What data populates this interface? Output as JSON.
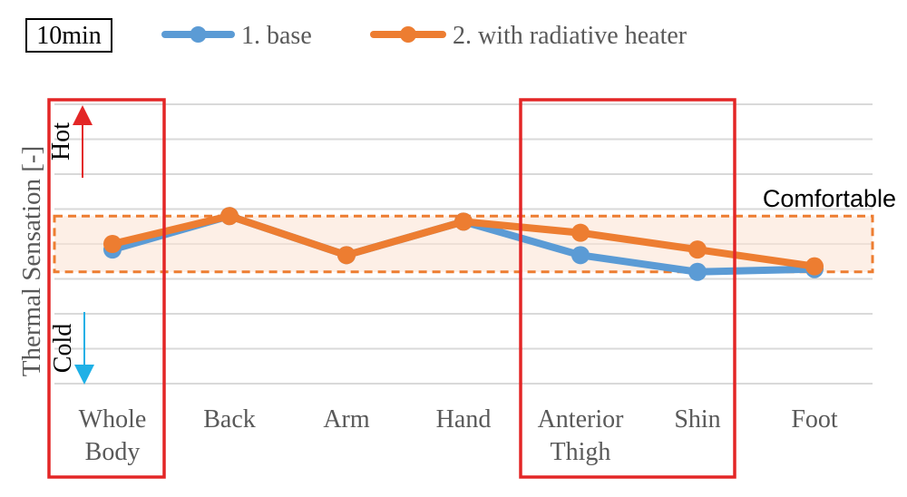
{
  "chart_data": {
    "type": "line",
    "time_label": "10min",
    "ylabel": "Thermal Sensation [-]",
    "hot_label": "Hot",
    "cold_label": "Cold",
    "band_label": "Comfortable",
    "comfort_band": [
      -0.5,
      0.5
    ],
    "ylim": [
      -2.5,
      2.5
    ],
    "categories": [
      [
        "Whole",
        "Body"
      ],
      [
        "Back"
      ],
      [
        "Arm"
      ],
      [
        "Hand"
      ],
      [
        "Anterior",
        "Thigh"
      ],
      [
        "Shin"
      ],
      [
        "Foot"
      ]
    ],
    "series": [
      {
        "name": "1. base",
        "color": "#5b9bd5",
        "values": [
          -0.1,
          0.5,
          -0.2,
          0.4,
          -0.2,
          -0.5,
          -0.45
        ]
      },
      {
        "name": "2. with radiative heater",
        "color": "#ed7d31",
        "values": [
          0.0,
          0.5,
          -0.2,
          0.4,
          0.2,
          -0.1,
          -0.4
        ]
      }
    ],
    "highlighted_categories": [
      "Whole Body",
      "Anterior Thigh",
      "Shin"
    ],
    "grid": true,
    "legend_position": "top"
  }
}
